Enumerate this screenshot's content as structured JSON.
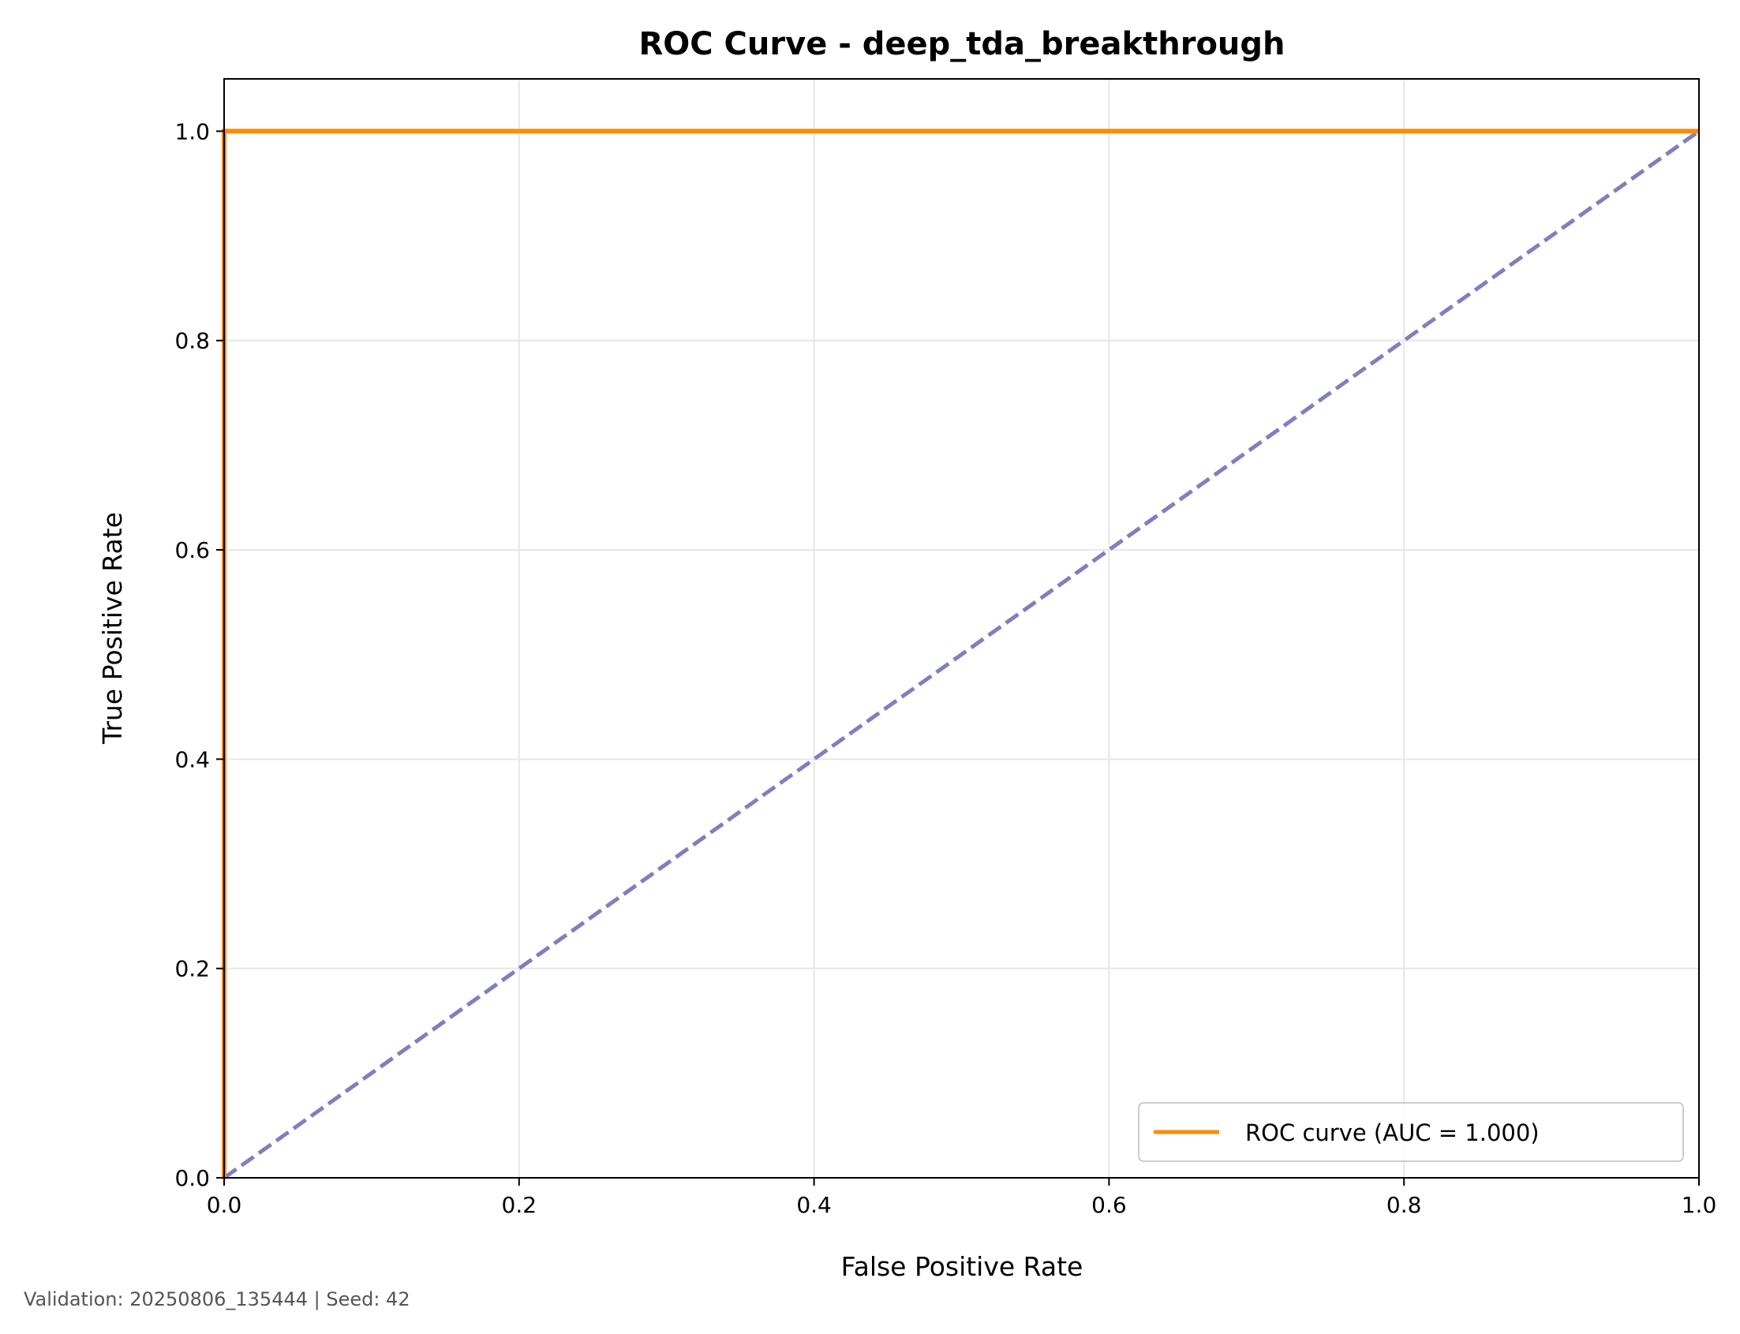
{
  "chart_data": {
    "type": "line",
    "title": "ROC Curve - deep_tda_breakthrough",
    "xlabel": "False Positive Rate",
    "ylabel": "True Positive Rate",
    "xlim": [
      0.0,
      1.0
    ],
    "ylim": [
      0.0,
      1.05
    ],
    "xticks": [
      "0.0",
      "0.2",
      "0.4",
      "0.6",
      "0.8",
      "1.0"
    ],
    "yticks": [
      "0.0",
      "0.2",
      "0.4",
      "0.6",
      "0.8",
      "1.0"
    ],
    "grid": true,
    "legend_position": "lower-right",
    "series": [
      {
        "name": "ROC curve (AUC = 1.000)",
        "color": "#ff8c00",
        "style": "solid",
        "x": [
          0.0,
          0.0,
          1.0
        ],
        "y": [
          0.0,
          1.0,
          1.0
        ]
      },
      {
        "color": "#7f7fbf",
        "style": "dashed",
        "x": [
          0.0,
          1.0
        ],
        "y": [
          0.0,
          1.0
        ]
      }
    ]
  },
  "footnote": "Validation: 20250806_135444 | Seed: 42"
}
